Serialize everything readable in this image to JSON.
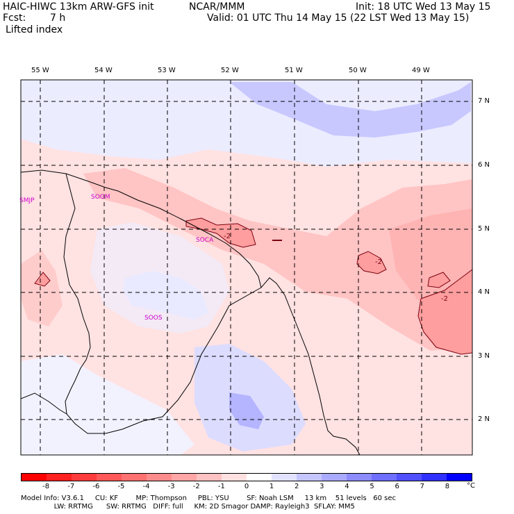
{
  "header": {
    "model_title": "HAIC-HIWC 13km ARW-GFS init",
    "org": "NCAR/MMM",
    "init": "Init: 18 UTC Wed 13 May 15",
    "fcst_label": "Fcst:",
    "fcst_value": "7 h",
    "valid": "Valid: 01 UTC Thu 14 May 15 (22 LST Wed 13 May 15)",
    "field": "Lifted index"
  },
  "map": {
    "lon_labels": [
      "55 W",
      "54 W",
      "53 W",
      "52 W",
      "51 W",
      "50 W",
      "49 W"
    ],
    "lat_labels": [
      "7 N",
      "6 N",
      "5 N",
      "4 N",
      "3 N",
      "2 N"
    ],
    "stations": [
      "SMJP",
      "SOGM",
      "SOCA",
      "SOOS"
    ],
    "contour_labels": [
      "-2",
      "-2",
      "-2"
    ]
  },
  "colorbar": {
    "labels": [
      "-8",
      "-7",
      "-6",
      "-5",
      "-4",
      "-3",
      "-2",
      "-1",
      "0",
      "1",
      "2",
      "3",
      "4",
      "5",
      "6",
      "7",
      "8"
    ],
    "unit": "°C",
    "colors": [
      "#ff0000",
      "#ff2020",
      "#ff3c3c",
      "#ff5858",
      "#ff7272",
      "#ff8c8c",
      "#ffa6a6",
      "#ffc2c2",
      "#ffe0e0",
      "#ffffff",
      "#e2e2ff",
      "#c6c6ff",
      "#aaaaff",
      "#8c8cff",
      "#6e6eff",
      "#5050ff",
      "#3030ff",
      "#0000ff"
    ]
  },
  "model_info": {
    "line1": "Model Info: V3.6.1     CU: KF        MP: Thompson     PBL: YSU        SF: Noah LSM     13 km    51 levels   60 sec",
    "line2": "               LW: RRTMG      SW: RRTMG   DIFF: full     KM: 2D Smagor DAMP: Rayleigh3  SFLAY: MM5"
  }
}
